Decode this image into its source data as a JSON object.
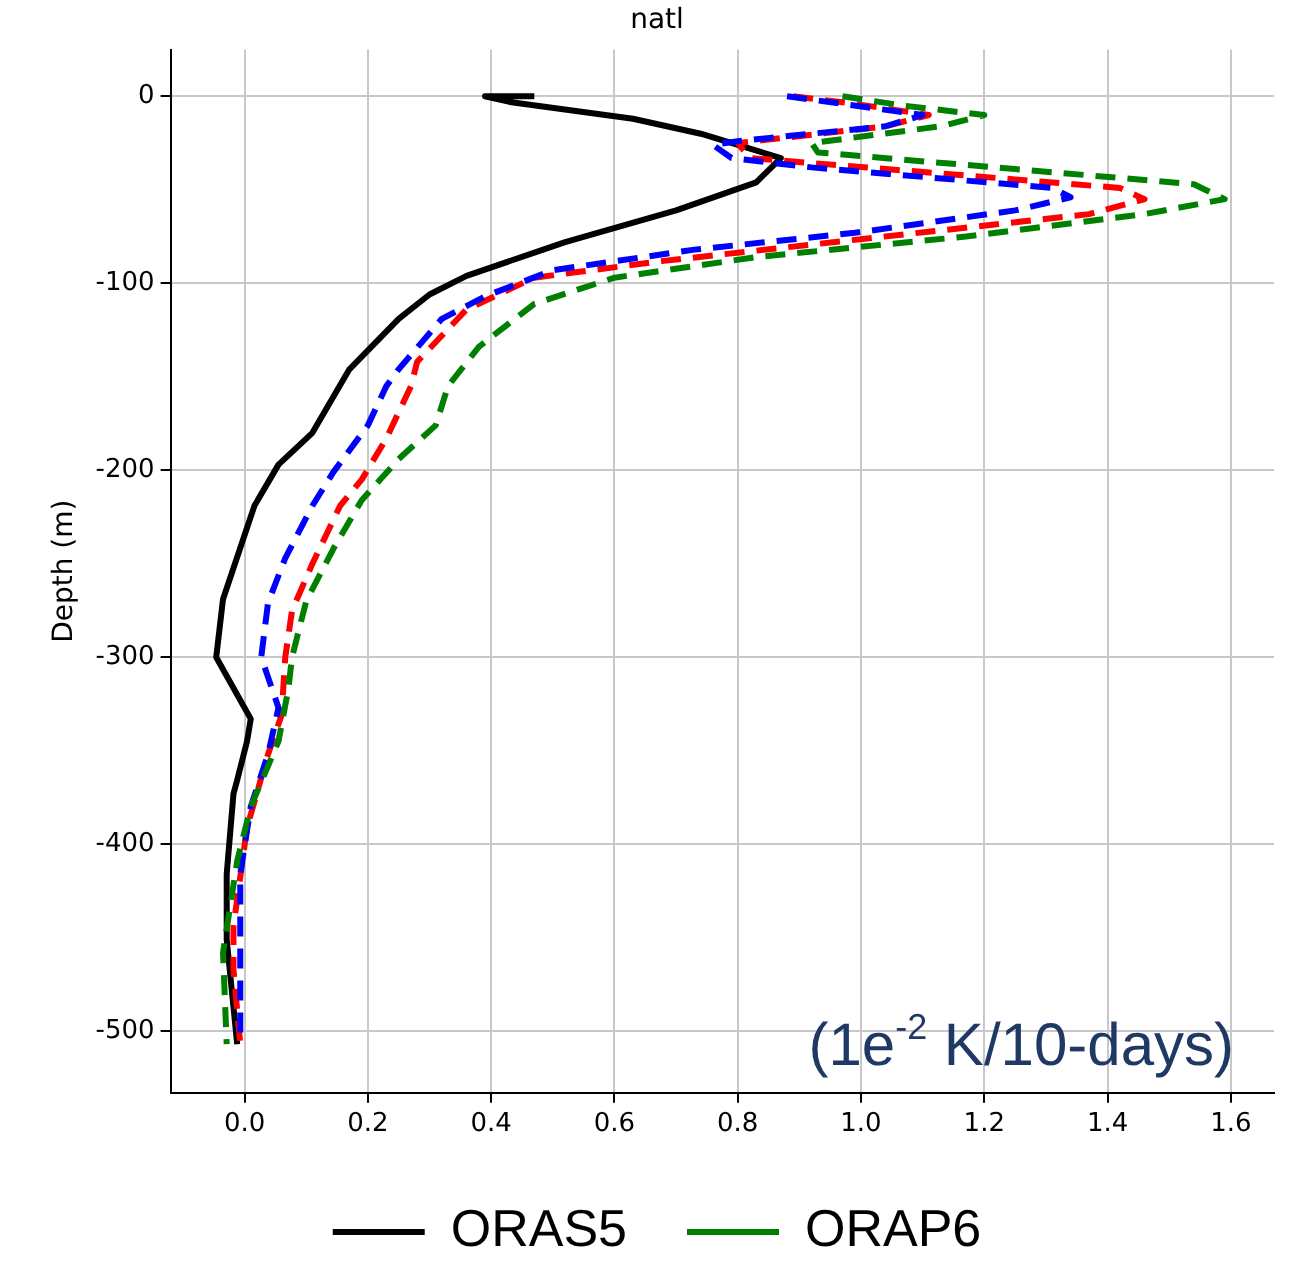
{
  "chart_data": {
    "type": "line",
    "title": "natl",
    "ylabel": "Depth (m)",
    "annotations": [
      "(1e$^{-2}$ K/10-days)"
    ],
    "xlim": [
      -0.12,
      1.67
    ],
    "xticks": [
      {
        "value": 0,
        "label": "0.0"
      },
      0.2,
      0.4,
      0.6,
      0.8,
      {
        "value": 1,
        "label": "1.0"
      },
      1.2,
      1.4,
      1.6
    ],
    "ylim": [
      -533,
      25
    ],
    "yticks": [
      0,
      -100,
      -200,
      -300,
      -400,
      -500
    ],
    "grid": true,
    "legend": "bottom",
    "series": [
      {
        "name": "ORAS5",
        "color": "#000000",
        "line_style": "solid",
        "x": [
          0.47,
          0.39,
          0.43,
          0.63,
          0.74,
          0.87,
          0.83,
          0.7,
          0.52,
          0.36,
          0.3,
          0.25,
          0.17,
          0.11,
          0.055,
          0.016,
          -0.035,
          -0.046,
          0.01,
          0.004,
          -0.013,
          -0.018,
          -0.029,
          -0.029,
          -0.012
        ],
        "values": [
          0,
          0,
          -3,
          -12,
          -20,
          -33,
          -46,
          -61,
          -78,
          -96,
          -106,
          -119,
          -146,
          -180,
          -197,
          -219,
          -269,
          -300,
          -333,
          -345,
          -367,
          -373,
          -416,
          -451,
          -507
        ]
      },
      {
        "color": "#ff0000",
        "line_style": "dashed",
        "x": [
          0.89,
          0.99,
          1.11,
          1.04,
          0.8,
          0.82,
          1.42,
          1.46,
          1.37,
          1.01,
          0.68,
          0.47,
          0.36,
          0.28,
          0.27,
          0.23,
          0.19,
          0.155,
          0.11,
          0.077,
          0.066,
          0.06,
          0.038,
          0.004,
          -0.018,
          -0.018,
          -0.007
        ],
        "values": [
          0,
          -4,
          -10,
          -16,
          -25,
          -33,
          -49,
          -55,
          -63,
          -76,
          -88,
          -97,
          -114,
          -142,
          -155,
          -183,
          -205,
          -219,
          -250,
          -275,
          -300,
          -331,
          -352,
          -391,
          -444,
          -467,
          -507
        ]
      },
      {
        "color": "#0000ff",
        "line_style": "dashed",
        "x": [
          0.88,
          0.97,
          1.1,
          1.04,
          0.8,
          0.76,
          0.79,
          0.92,
          1.31,
          1.34,
          1.25,
          0.99,
          0.73,
          0.5,
          0.39,
          0.32,
          0.25,
          0.23,
          0.2,
          0.144,
          0.11,
          0.066,
          0.038,
          0.027,
          0.055,
          0.038,
          0.01,
          -0.007,
          -0.007,
          -0.007
        ],
        "values": [
          0,
          -4,
          -10,
          -16,
          -24,
          -26,
          -33,
          -38,
          -49,
          -54,
          -61,
          -73,
          -82,
          -93,
          -107,
          -119,
          -146,
          -155,
          -176,
          -201,
          -219,
          -247,
          -271,
          -300,
          -327,
          -352,
          -380,
          -416,
          -451,
          -505
        ]
      },
      {
        "name": "ORAP6",
        "color": "#008000",
        "line_style": "dashed",
        "x": [
          0.97,
          1.07,
          1.2,
          1.13,
          0.92,
          0.93,
          1.54,
          1.59,
          1.46,
          1.17,
          0.83,
          0.6,
          0.47,
          0.38,
          0.33,
          0.31,
          0.25,
          0.19,
          0.144,
          0.1,
          0.077,
          0.071,
          0.055,
          0.01,
          -0.012,
          -0.035,
          -0.029
        ],
        "values": [
          0,
          -5,
          -10,
          -16,
          -25,
          -30,
          -47,
          -55,
          -63,
          -75,
          -86,
          -97,
          -111,
          -134,
          -155,
          -176,
          -194,
          -216,
          -242,
          -270,
          -300,
          -317,
          -345,
          -380,
          -409,
          -458,
          -507
        ]
      }
    ]
  }
}
